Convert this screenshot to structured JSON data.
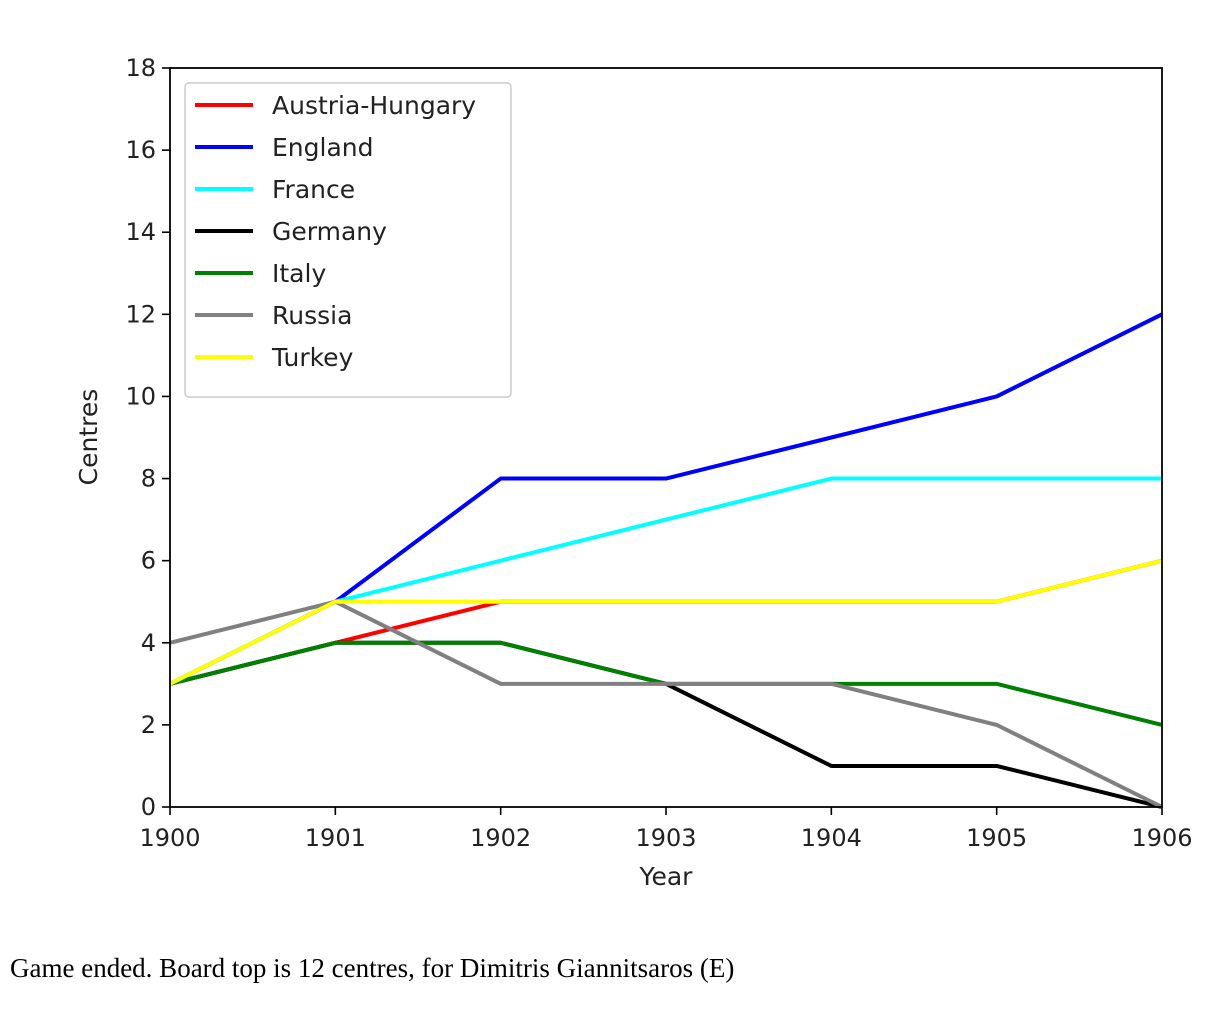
{
  "chart_data": {
    "type": "line",
    "title": "",
    "xlabel": "Year",
    "ylabel": "Centres",
    "x": [
      1900,
      1901,
      1902,
      1903,
      1904,
      1905,
      1906
    ],
    "xlim": [
      1900,
      1906
    ],
    "ylim": [
      0,
      18
    ],
    "x_ticks": [
      "1900",
      "1901",
      "1902",
      "1903",
      "1904",
      "1905",
      "1906"
    ],
    "y_ticks": [
      "0",
      "2",
      "4",
      "6",
      "8",
      "10",
      "12",
      "14",
      "16",
      "18"
    ],
    "grid": false,
    "legend_position": "top-left",
    "series": [
      {
        "name": "Austria-Hungary",
        "color": "#ff0000",
        "values": [
          3,
          4,
          5,
          5,
          5,
          5,
          6
        ]
      },
      {
        "name": "England",
        "color": "#0000ff",
        "values": [
          3,
          5,
          8,
          8,
          9,
          10,
          12
        ]
      },
      {
        "name": "France",
        "color": "#00ffff",
        "values": [
          3,
          5,
          6,
          7,
          8,
          8,
          8
        ]
      },
      {
        "name": "Germany",
        "color": "#000000",
        "values": [
          3,
          4,
          4,
          3,
          1,
          1,
          0
        ]
      },
      {
        "name": "Italy",
        "color": "#008000",
        "values": [
          3,
          4,
          4,
          3,
          3,
          3,
          2
        ]
      },
      {
        "name": "Russia",
        "color": "#808080",
        "values": [
          4,
          5,
          3,
          3,
          3,
          2,
          0
        ]
      },
      {
        "name": "Turkey",
        "color": "#ffff00",
        "values": [
          3,
          5,
          5,
          5,
          5,
          5,
          6
        ]
      }
    ]
  },
  "caption": "Game ended. Board top is 12 centres, for Dimitris Giannitsaros (E)"
}
